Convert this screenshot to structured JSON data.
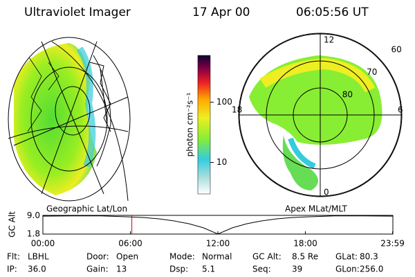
{
  "header": {
    "title": "Ultraviolet Imager",
    "date": "17 Apr 00",
    "time": "06:05:56 UT"
  },
  "left_image": {
    "label": "Geographic Lat/Lon"
  },
  "right_image": {
    "label": "Apex MLat/MLT",
    "lat_rings": [
      80,
      70,
      60
    ],
    "mlt_ticks": [
      12,
      18,
      6,
      0
    ]
  },
  "colorbar": {
    "label": "photon cm⁻²s⁻¹",
    "log": true,
    "clim": [
      3,
      600
    ],
    "ticks": [
      10,
      100
    ]
  },
  "orbit_plot": {
    "ylabel": "GC Alt",
    "x": [
      0,
      2,
      4,
      6,
      7,
      8,
      9,
      10,
      11,
      12,
      13,
      14,
      15,
      16,
      17,
      18,
      20,
      22,
      23.98
    ],
    "values": [
      8.9,
      9.0,
      9.0,
      8.6,
      8.3,
      7.8,
      7.0,
      5.9,
      4.3,
      1.8,
      4.3,
      5.9,
      7.0,
      7.8,
      8.3,
      8.6,
      9.0,
      9.0,
      8.9
    ],
    "current_time": 6.1,
    "color": "#000000",
    "marker_color": "#cc0000",
    "xlim": [
      0,
      24
    ],
    "ylim": [
      1.8,
      9.2
    ],
    "xticks": [
      {
        "value": 0,
        "label": "00:00"
      },
      {
        "value": 6,
        "label": "06:00"
      },
      {
        "value": 12,
        "label": "12:00"
      },
      {
        "value": 18,
        "label": "18:00"
      },
      {
        "value": 23.98,
        "label": "23:59"
      }
    ],
    "yticks": [
      {
        "value": 9.0,
        "label": "9.0"
      },
      {
        "value": 1.8,
        "label": "1.8"
      }
    ]
  },
  "footer": [
    [
      {
        "label": "Flt:",
        "value": "LBHL"
      },
      {
        "label": "Door:",
        "value": "Open"
      },
      {
        "label": "Mode:",
        "value": "Normal"
      },
      {
        "label": "GC Alt:",
        "value": "8.5 Re"
      },
      {
        "label": "GLat:",
        "value": "80.3"
      }
    ],
    [
      {
        "label": "IP:",
        "value": "36.0"
      },
      {
        "label": "Gain:",
        "value": "13"
      },
      {
        "label": "Dsp:",
        "value": "5.1"
      },
      {
        "label": "Seq:",
        "value": "39"
      },
      {
        "label": "GLon:",
        "value": "256.0"
      }
    ]
  ]
}
